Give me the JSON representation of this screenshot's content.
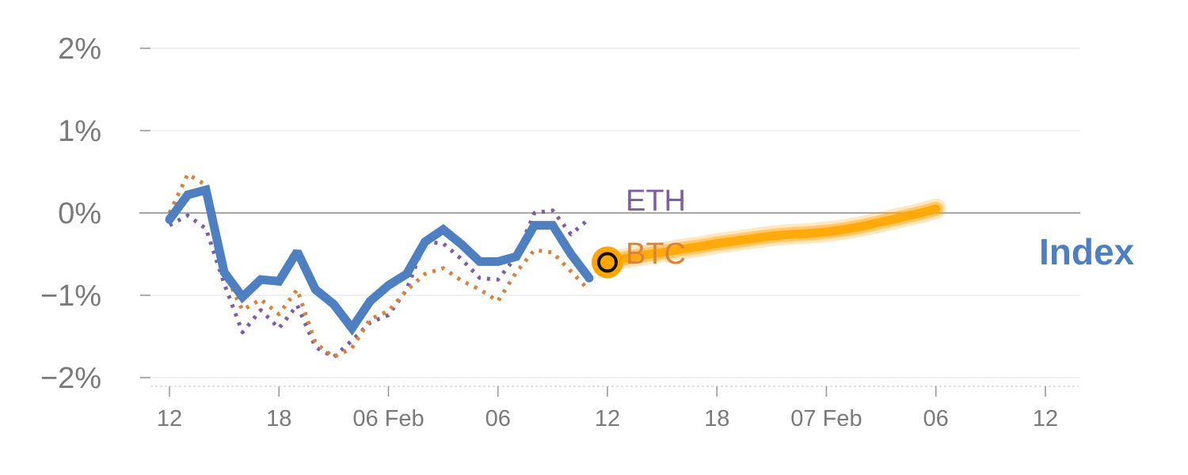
{
  "chart_data": {
    "type": "line",
    "title": "",
    "xlabel": "",
    "ylabel": "",
    "y_unit": "%",
    "ylim": [
      -2,
      2
    ],
    "y_ticks": [
      2,
      1,
      0,
      -1,
      -2
    ],
    "y_tick_labels": [
      "2%",
      "1%",
      "0%",
      "−1%",
      "−2%"
    ],
    "x_tick_labels": [
      "12",
      "18",
      "06 Feb",
      "06",
      "12",
      "18",
      "07 Feb",
      "06",
      "12"
    ],
    "x_note": "hourly steps; tick labels every 6 hours starting at index 0",
    "grid": true,
    "zero_line": true,
    "series": [
      {
        "name": "Index",
        "style": "solid-thick",
        "color": "#4e7fc0",
        "start": 0,
        "values": [
          -0.08,
          0.22,
          0.28,
          -0.72,
          -1.02,
          -0.81,
          -0.83,
          -0.47,
          -0.93,
          -1.11,
          -1.4,
          -1.07,
          -0.88,
          -0.74,
          -0.35,
          -0.2,
          -0.38,
          -0.59,
          -0.59,
          -0.53,
          -0.15,
          -0.15,
          -0.5,
          -0.79
        ]
      },
      {
        "name": "BTC",
        "style": "dotted",
        "color": "#d9823b",
        "start": 0,
        "values": [
          0.0,
          0.47,
          0.34,
          -0.72,
          -1.18,
          -1.05,
          -1.23,
          -0.93,
          -1.58,
          -1.75,
          -1.64,
          -1.29,
          -1.19,
          -0.94,
          -0.74,
          -0.67,
          -0.82,
          -0.93,
          -1.07,
          -0.72,
          -0.45,
          -0.48,
          -0.71,
          -0.94
        ]
      },
      {
        "name": "ETH",
        "style": "dotted",
        "color": "#7d5ea6",
        "start": 0,
        "values": [
          -0.15,
          -0.03,
          -0.19,
          -0.86,
          -1.45,
          -1.18,
          -1.4,
          -1.12,
          -1.63,
          -1.75,
          -1.55,
          -1.33,
          -1.24,
          -0.93,
          -0.35,
          -0.37,
          -0.56,
          -0.79,
          -0.81,
          -0.53,
          0.0,
          0.03,
          -0.26,
          -0.07
        ]
      },
      {
        "name": "forecast",
        "style": "band",
        "color": "#ffa500",
        "start": 24,
        "values": [
          -0.6,
          -0.55,
          -0.51,
          -0.48,
          -0.44,
          -0.41,
          -0.37,
          -0.34,
          -0.31,
          -0.28,
          -0.26,
          -0.25,
          -0.23,
          -0.2,
          -0.16,
          -0.11,
          -0.06,
          -0.01,
          0.05
        ]
      }
    ],
    "current_point": {
      "x": 24,
      "y": -0.6
    },
    "annotations": [
      "ETH",
      "BTC",
      "Index"
    ]
  },
  "labels": {
    "eth": "ETH",
    "btc": "BTC",
    "index": "Index"
  },
  "colors": {
    "index": "#4e7fc0",
    "btc": "#d9823b",
    "eth": "#7d5ea6",
    "forecast": "#ffa500",
    "gridline": "#e8e8e8",
    "zero_line": "#8c8c8c",
    "tick_text": "#7a7a7a"
  }
}
